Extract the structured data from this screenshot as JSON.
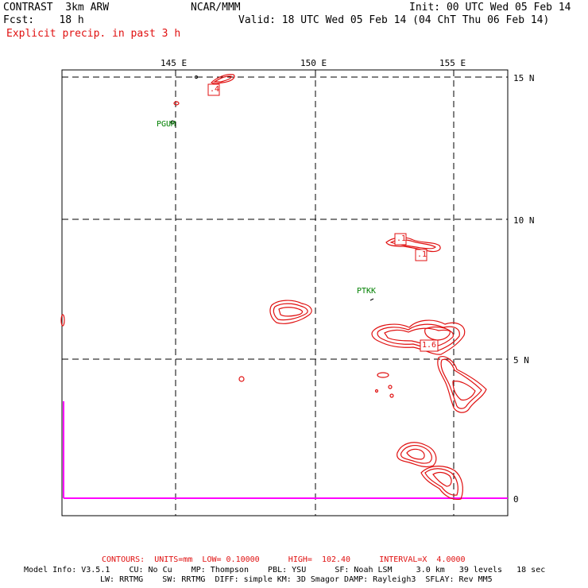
{
  "header": {
    "model": "CONTRAST  3km ARW",
    "center": "NCAR/MMM",
    "init": "Init: 00 UTC Wed 05 Feb 14",
    "fcst": "Fcst:    18 h",
    "valid": "Valid: 18 UTC Wed 05 Feb 14 (04 ChT Thu 06 Feb 14)",
    "field": "Explicit precip. in past 3 h"
  },
  "map": {
    "lon_labels": [
      "145 E",
      "150 E",
      "155 E"
    ],
    "lat_labels": [
      "15 N",
      "10 N",
      "5 N",
      "0"
    ],
    "stations": [
      "PGUM",
      "PTKK"
    ],
    "contour_labels": [
      ".4",
      ".1",
      ".1",
      "1.6"
    ],
    "colors": {
      "contour": "#e01010",
      "grid": "#000000",
      "boundary": "#ff00ff",
      "station": "#008000"
    }
  },
  "footer": {
    "contours": "CONTOURS:  UNITS=mm  LOW= 0.10000      HIGH=  102.40      INTERVAL=X  4.0000",
    "model_info_1": "Model Info: V3.5.1    CU: No Cu    MP: Thompson    PBL: YSU      SF: Noah LSM     3.0 km   39 levels   18 sec",
    "model_info_2": "LW: RRTMG    SW: RRTMG  DIFF: simple KM: 3D Smagor DAMP: Rayleigh3  SFLAY: Rev MM5"
  }
}
